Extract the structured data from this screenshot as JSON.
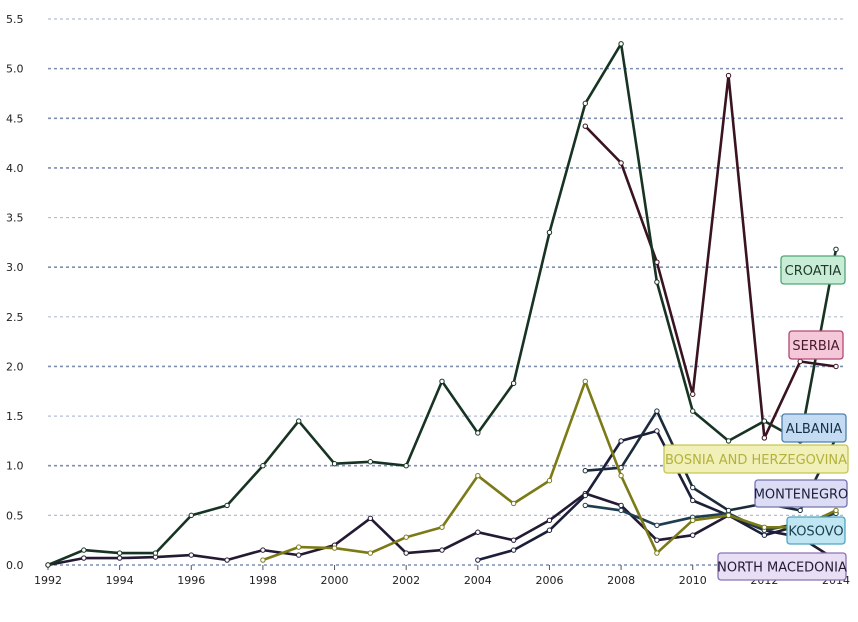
{
  "chart_data": {
    "type": "line",
    "title": "",
    "xlabel": "",
    "ylabel": "",
    "x": [
      1992,
      1993,
      1994,
      1995,
      1996,
      1997,
      1998,
      1999,
      2000,
      2001,
      2002,
      2003,
      2004,
      2005,
      2006,
      2007,
      2008,
      2009,
      2010,
      2011,
      2012,
      2013,
      2014
    ],
    "xticks": [
      1992,
      1994,
      1996,
      1998,
      2000,
      2002,
      2004,
      2006,
      2008,
      2010,
      2012,
      2014
    ],
    "yticks": [
      0.0,
      0.5,
      1.0,
      1.5,
      2.0,
      2.5,
      3.0,
      3.5,
      4.0,
      4.5,
      5.0,
      5.5
    ],
    "ylim": [
      0,
      5.5
    ],
    "grid": "horizontal dashed",
    "series": [
      {
        "name": "CROATIA",
        "color": "#173322",
        "label_bg": "#c9ecd7",
        "label_border": "#4fa774",
        "label_color": "#1d3a2a",
        "values": [
          0.0,
          0.15,
          0.12,
          0.12,
          0.5,
          0.6,
          1.0,
          1.45,
          1.02,
          1.04,
          1.0,
          1.85,
          1.33,
          1.83,
          3.35,
          4.65,
          5.25,
          2.85,
          1.55,
          1.25,
          1.45,
          1.25,
          3.18
        ]
      },
      {
        "name": "SERBIA",
        "color": "#3a1320",
        "label_bg": "#f5c8d9",
        "label_border": "#b44772",
        "label_color": "#4a1828",
        "values": [
          null,
          null,
          null,
          null,
          null,
          null,
          null,
          null,
          null,
          null,
          null,
          null,
          null,
          null,
          null,
          4.42,
          4.05,
          3.05,
          1.72,
          4.93,
          1.28,
          2.05,
          2.0
        ]
      },
      {
        "name": "ALBANIA",
        "color": "#1b2b3b",
        "label_bg": "#c3dcf3",
        "label_border": "#4f7fb0",
        "label_color": "#16304a",
        "values": [
          null,
          null,
          null,
          null,
          null,
          null,
          null,
          null,
          null,
          null,
          null,
          null,
          null,
          null,
          null,
          0.95,
          0.98,
          1.55,
          0.78,
          0.55,
          0.62,
          0.55,
          1.28
        ]
      },
      {
        "name": "BOSNIA AND HERZEGOVINA",
        "color": "#7c7a16",
        "label_bg": "#f0f0b8",
        "label_border": "#c7c652",
        "label_color": "#b4b23c",
        "values": [
          null,
          null,
          null,
          null,
          null,
          null,
          0.05,
          0.18,
          0.17,
          0.12,
          0.28,
          0.38,
          0.9,
          0.62,
          0.85,
          1.85,
          0.9,
          0.12,
          0.45,
          0.5,
          0.38,
          0.38,
          0.55
        ]
      },
      {
        "name": "MONTENEGRO",
        "color": "#1c1f3a",
        "label_bg": "#dcdcf5",
        "label_border": "#7474b0",
        "label_color": "#1c1f3a",
        "values": [
          null,
          null,
          null,
          null,
          null,
          null,
          null,
          null,
          null,
          null,
          null,
          null,
          0.05,
          0.15,
          0.35,
          0.7,
          1.25,
          1.35,
          0.65,
          0.5,
          0.3,
          0.4,
          0.4
        ]
      },
      {
        "name": "KOSOVO",
        "color": "#1f3d50",
        "label_bg": "#bfe6f2",
        "label_border": "#4fa7c2",
        "label_color": "#1a3d4a",
        "values": [
          null,
          null,
          null,
          null,
          null,
          null,
          null,
          null,
          null,
          null,
          null,
          null,
          null,
          null,
          null,
          0.6,
          0.55,
          0.4,
          0.48,
          0.52,
          0.35,
          0.42,
          0.52
        ]
      },
      {
        "name": "NORTH MACEDONIA",
        "color": "#241a33",
        "label_bg": "#e8dff5",
        "label_border": "#8a72b4",
        "label_color": "#241a33",
        "values": [
          0.0,
          0.07,
          0.07,
          0.08,
          0.1,
          0.05,
          0.15,
          0.1,
          0.2,
          0.47,
          0.12,
          0.15,
          0.33,
          0.25,
          0.45,
          0.72,
          0.6,
          0.25,
          0.3,
          0.5,
          0.35,
          0.28,
          0.05
        ]
      }
    ]
  }
}
